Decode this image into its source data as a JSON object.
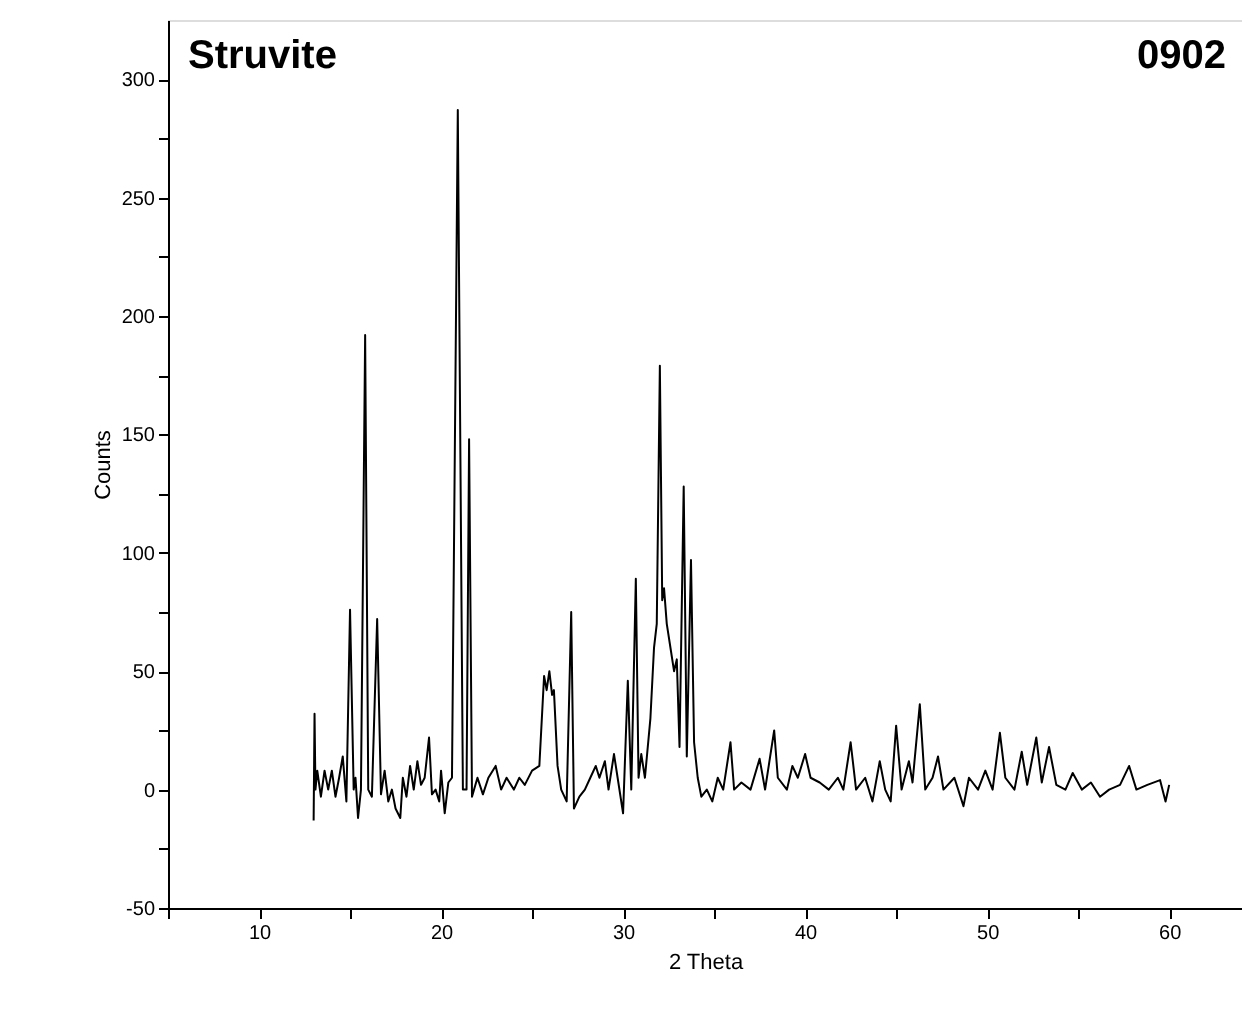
{
  "chart_data": {
    "type": "line",
    "title": "Struvite",
    "xlabel": "2 Theta",
    "ylabel": "Counts",
    "annotations": [
      "0902"
    ],
    "xlim": [
      5,
      64
    ],
    "ylim": [
      -50,
      325
    ],
    "xticks": [
      {
        "value": 5,
        "label": null
      },
      10,
      {
        "value": 15,
        "label": null
      },
      20,
      {
        "value": 25,
        "label": null
      },
      30,
      {
        "value": 35,
        "label": null
      },
      40,
      {
        "value": 45,
        "label": null
      },
      50,
      {
        "value": 55,
        "label": null
      },
      60
    ],
    "yticks": [
      -50,
      {
        "value": -25,
        "label": null
      },
      0,
      {
        "value": 25,
        "label": null
      },
      50,
      {
        "value": 75,
        "label": null
      },
      100,
      {
        "value": 125,
        "label": null
      },
      150,
      {
        "value": 175,
        "label": null
      },
      200,
      {
        "value": 225,
        "label": null
      },
      250,
      {
        "value": 275,
        "label": null
      },
      300
    ],
    "grid": false,
    "marker": "none",
    "line_style": "solid",
    "series": [
      {
        "color": "#000000",
        "x": [
          13.0,
          13.05,
          13.1,
          13.2,
          13.4,
          13.6,
          13.8,
          14.0,
          14.2,
          14.4,
          14.6,
          14.8,
          15.0,
          15.2,
          15.3,
          15.44,
          15.6,
          15.83,
          16.0,
          16.2,
          16.49,
          16.7,
          16.9,
          17.1,
          17.3,
          17.5,
          17.76,
          17.9,
          18.1,
          18.3,
          18.5,
          18.7,
          18.9,
          19.1,
          19.34,
          19.5,
          19.7,
          19.9,
          20.0,
          20.2,
          20.4,
          20.6,
          20.92,
          21.2,
          21.4,
          21.54,
          21.7,
          22.0,
          22.3,
          22.6,
          23.0,
          23.3,
          23.6,
          24.0,
          24.3,
          24.6,
          25.0,
          25.4,
          25.66,
          25.8,
          25.95,
          26.1,
          26.2,
          26.4,
          26.6,
          26.9,
          27.15,
          27.3,
          27.6,
          27.9,
          28.2,
          28.5,
          28.7,
          29.0,
          29.2,
          29.5,
          29.7,
          30.0,
          30.26,
          30.45,
          30.7,
          30.85,
          31.0,
          31.2,
          31.5,
          31.7,
          31.85,
          32.02,
          32.15,
          32.25,
          32.4,
          32.6,
          32.8,
          32.95,
          33.1,
          33.33,
          33.5,
          33.73,
          33.9,
          34.1,
          34.3,
          34.6,
          34.9,
          35.2,
          35.5,
          35.9,
          36.1,
          36.5,
          37.0,
          37.5,
          37.8,
          38.3,
          38.5,
          39.0,
          39.3,
          39.6,
          40.0,
          40.3,
          40.8,
          41.3,
          41.8,
          42.1,
          42.5,
          42.8,
          43.3,
          43.7,
          44.1,
          44.4,
          44.7,
          45.0,
          45.3,
          45.7,
          45.9,
          46.3,
          46.6,
          47.0,
          47.3,
          47.6,
          48.2,
          48.7,
          49.0,
          49.5,
          49.9,
          50.3,
          50.7,
          51.0,
          51.5,
          51.9,
          52.2,
          52.7,
          53.0,
          53.4,
          53.8,
          54.3,
          54.7,
          55.2,
          55.7,
          56.2,
          56.7,
          57.3,
          57.8,
          58.2,
          58.8,
          59.5,
          59.8,
          60.0
        ],
        "values": [
          -13,
          32,
          0,
          8,
          -3,
          8,
          0,
          8,
          -3,
          5,
          14,
          -5,
          76,
          0,
          5,
          -12,
          0,
          192,
          0,
          -3,
          72,
          -2,
          8,
          -5,
          0,
          -8,
          -12,
          5,
          -3,
          10,
          0,
          12,
          2,
          5,
          22,
          -2,
          0,
          -5,
          8,
          -10,
          3,
          5,
          287,
          0,
          0,
          148,
          -3,
          5,
          -2,
          5,
          10,
          0,
          5,
          0,
          5,
          2,
          8,
          10,
          48,
          42,
          50,
          40,
          42,
          10,
          0,
          -5,
          75,
          -8,
          -3,
          0,
          5,
          10,
          5,
          12,
          0,
          15,
          5,
          -10,
          46,
          0,
          89,
          5,
          15,
          5,
          30,
          60,
          70,
          179,
          80,
          85,
          70,
          60,
          50,
          55,
          18,
          128,
          14,
          97,
          20,
          5,
          -3,
          0,
          -5,
          5,
          0,
          20,
          0,
          3,
          0,
          13,
          0,
          25,
          5,
          0,
          10,
          5,
          15,
          5,
          3,
          0,
          5,
          0,
          20,
          0,
          5,
          -5,
          12,
          0,
          -5,
          27,
          0,
          12,
          3,
          36,
          0,
          5,
          14,
          0,
          5,
          -7,
          5,
          0,
          8,
          0,
          24,
          5,
          0,
          16,
          2,
          22,
          3,
          18,
          2,
          0,
          7,
          0,
          3,
          -3,
          0,
          2,
          10,
          0,
          2,
          4,
          -5,
          2
        ]
      }
    ]
  }
}
